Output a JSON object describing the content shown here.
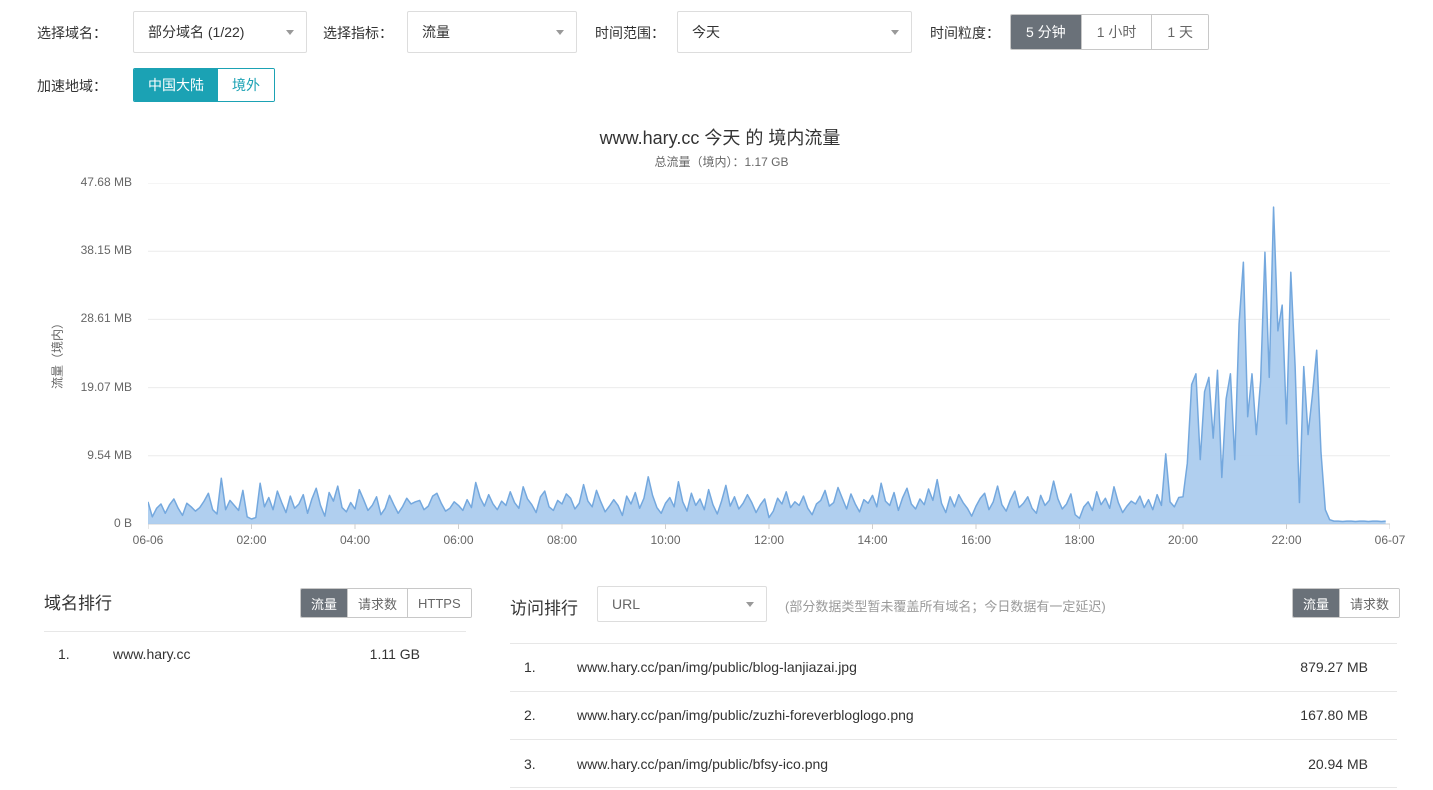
{
  "toolbar": {
    "domain_label": "选择域名：",
    "domain_value": "部分域名 (1/22)",
    "metric_label": "选择指标：",
    "metric_value": "流量",
    "range_label": "时间范围：",
    "range_value": "今天",
    "granularity_label": "时间粒度：",
    "granularity_options": {
      "m5": "5 分钟",
      "h1": "1 小时",
      "d1": "1 天"
    },
    "region_label": "加速地域：",
    "region_options": {
      "mainland": "中国大陆",
      "overseas": "境外"
    }
  },
  "chart_data": {
    "type": "area",
    "title": "www.hary.cc 今天 的 境内流量",
    "subtitle": "总流量（境内）：1.17 GB",
    "ylabel": "流量（境内）",
    "unit": "MB",
    "ymax_mb": 47.68,
    "grid": true,
    "legend_position": "none",
    "y_ticks": [
      "47.68 MB",
      "38.15 MB",
      "28.61 MB",
      "19.07 MB",
      "9.54 MB",
      "0 B"
    ],
    "x_ticks": [
      "06-06",
      "02:00",
      "04:00",
      "06:00",
      "08:00",
      "10:00",
      "12:00",
      "14:00",
      "16:00",
      "18:00",
      "20:00",
      "22:00",
      "06-07"
    ],
    "start": "06-06 00:00",
    "interval_minutes": 5,
    "values_mb": [
      3.1,
      1.0,
      2.2,
      2.8,
      1.5,
      2.7,
      3.5,
      2.2,
      1.2,
      2.9,
      2.4,
      1.8,
      2.3,
      3.2,
      4.3,
      2.0,
      1.4,
      6.4,
      2.0,
      3.3,
      2.6,
      1.9,
      4.7,
      1.0,
      0.7,
      0.9,
      5.7,
      2.4,
      3.7,
      2.0,
      4.6,
      3.0,
      1.6,
      3.9,
      2.2,
      2.8,
      4.1,
      1.5,
      3.5,
      5.0,
      2.6,
      1.1,
      4.4,
      3.2,
      5.3,
      2.3,
      1.7,
      3.0,
      2.1,
      4.8,
      3.4,
      1.9,
      2.6,
      3.8,
      1.3,
      2.2,
      4.0,
      2.7,
      1.5,
      2.4,
      3.6,
      2.8,
      3.1,
      3.3,
      2.0,
      2.5,
      3.9,
      4.3,
      2.9,
      1.8,
      2.2,
      3.1,
      2.6,
      1.9,
      3.4,
      2.3,
      5.8,
      3.7,
      2.5,
      4.1,
      2.8,
      2.0,
      3.2,
      2.6,
      4.5,
      3.0,
      2.2,
      5.2,
      3.5,
      2.7,
      1.6,
      3.8,
      4.6,
      2.4,
      1.9,
      3.3,
      2.8,
      4.2,
      3.6,
      2.1,
      2.9,
      5.5,
      3.2,
      2.4,
      4.7,
      3.1,
      1.7,
      2.5,
      3.4,
      2.6,
      1.2,
      3.9,
      2.8,
      4.4,
      2.2,
      3.6,
      6.6,
      4.0,
      2.3,
      1.5,
      2.9,
      3.7,
      2.4,
      5.9,
      3.1,
      1.8,
      4.3,
      2.6,
      3.5,
      2.0,
      4.8,
      2.7,
      1.4,
      3.2,
      5.4,
      2.5,
      3.8,
      2.1,
      2.9,
      4.1,
      3.0,
      1.6,
      2.7,
      3.5,
      0.9,
      1.8,
      3.6,
      2.8,
      4.5,
      2.3,
      3.1,
      2.6,
      3.9,
      2.2,
      1.3,
      2.8,
      3.3,
      4.7,
      2.5,
      3.0,
      5.1,
      3.6,
      2.1,
      4.2,
      2.8,
      1.7,
      3.4,
      2.9,
      4.0,
      2.4,
      5.7,
      3.2,
      2.6,
      4.4,
      1.9,
      3.7,
      5.0,
      2.8,
      2.1,
      3.5,
      2.7,
      4.9,
      3.3,
      6.2,
      2.9,
      1.6,
      3.8,
      2.4,
      4.1,
      3.0,
      2.2,
      1.1,
      2.5,
      3.6,
      4.3,
      2.0,
      3.1,
      5.3,
      2.7,
      1.8,
      3.4,
      4.6,
      2.3,
      2.9,
      3.8,
      2.2,
      1.5,
      4.0,
      2.6,
      3.3,
      6.0,
      3.5,
      2.1,
      2.8,
      4.2,
      1.3,
      0.8,
      2.4,
      3.1,
      1.9,
      4.5,
      2.7,
      3.6,
      2.2,
      5.2,
      3.0,
      1.6,
      2.5,
      3.2,
      2.8,
      3.9,
      2.3,
      3.4,
      2.0,
      4.1,
      2.6,
      9.8,
      3.1,
      2.4,
      3.7,
      3.8,
      8.5,
      19.5,
      21.0,
      9.0,
      18.5,
      20.5,
      12.0,
      21.5,
      6.5,
      17.5,
      21.0,
      9.0,
      28.0,
      36.6,
      15.0,
      21.0,
      12.5,
      20.0,
      38.0,
      20.5,
      44.3,
      27.0,
      30.6,
      14.0,
      35.2,
      22.0,
      3.0,
      22.0,
      12.5,
      18.0,
      24.3,
      10.0,
      2.0,
      0.6,
      0.4,
      0.4,
      0.35,
      0.4,
      0.4,
      0.35,
      0.4,
      0.4,
      0.35,
      0.4,
      0.4,
      0.35,
      0.4
    ]
  },
  "domain_rank": {
    "title": "域名排行",
    "tabs": {
      "traffic": "流量",
      "requests": "请求数",
      "https": "HTTPS"
    },
    "rows": [
      {
        "rank": "1.",
        "name": "www.hary.cc",
        "value": "1.11 GB"
      }
    ]
  },
  "url_rank": {
    "title": "访问排行",
    "filter_value": "URL",
    "note": "(部分数据类型暂未覆盖所有域名；今日数据有一定延迟)",
    "tabs": {
      "traffic": "流量",
      "requests": "请求数"
    },
    "rows": [
      {
        "rank": "1.",
        "name": "www.hary.cc/pan/img/public/blog-lanjiazai.jpg",
        "value": "879.27 MB"
      },
      {
        "rank": "2.",
        "name": "www.hary.cc/pan/img/public/zuzhi-foreverbloglogo.png",
        "value": "167.80 MB"
      },
      {
        "rank": "3.",
        "name": "www.hary.cc/pan/img/public/bfsy-ico.png",
        "value": "20.94 MB"
      }
    ]
  },
  "colors": {
    "accent_teal": "#1ba2b4",
    "active_tab": "#6a7179",
    "chart_line": "#74a8de",
    "chart_fill": "#a9cbee",
    "grid": "#ebebeb",
    "axis": "#cfcfcf"
  }
}
